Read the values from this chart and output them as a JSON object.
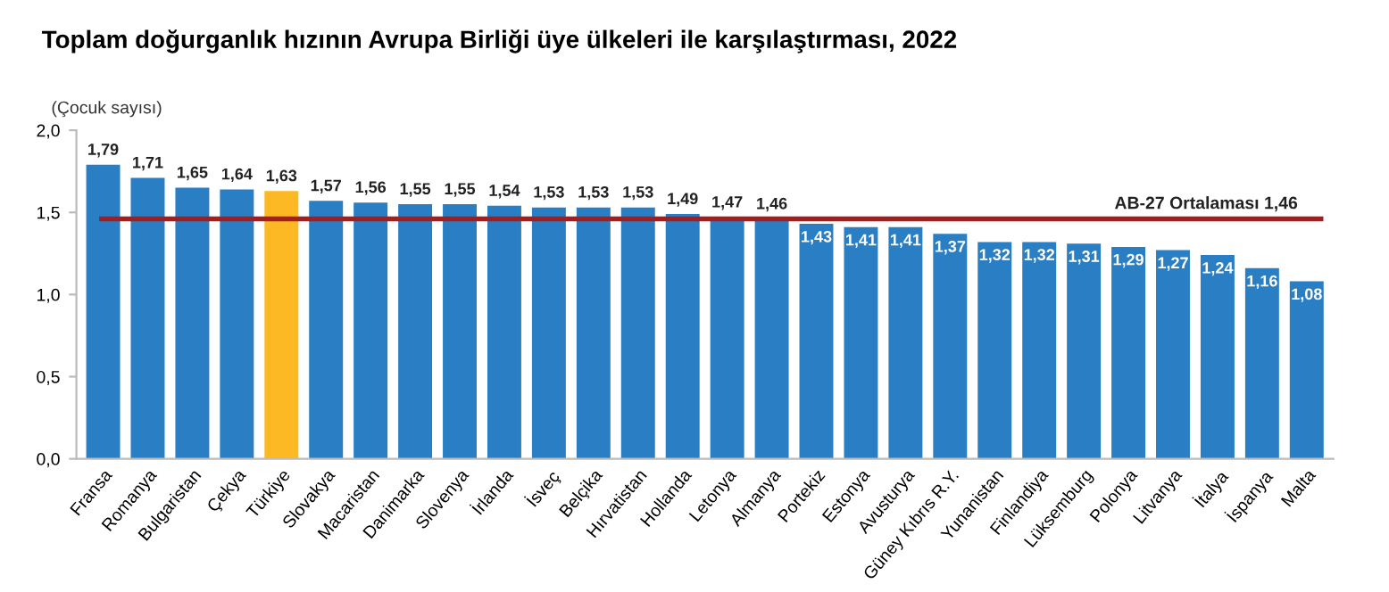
{
  "chart_data": {
    "type": "bar",
    "title": "Toplam doğurganlık hızının Avrupa Birliği üye ülkeleri ile karşılaştırması, 2022",
    "ylabel": "(Çocuk sayısı)",
    "categories": [
      "Fransa",
      "Romanya",
      "Bulgaristan",
      "Çekya",
      "Türkiye",
      "Slovakya",
      "Macaristan",
      "Danimarka",
      "Slovenya",
      "İrlanda",
      "İsveç",
      "Belçika",
      "Hırvatistan",
      "Hollanda",
      "Letonya",
      "Almanya",
      "Portekiz",
      "Estonya",
      "Avusturya",
      "Güney Kıbrıs R.Y.",
      "Yunanistan",
      "Finlandiya",
      "Lüksemburg",
      "Polonya",
      "Litvanya",
      "İtalya",
      "İspanya",
      "Malta"
    ],
    "values": [
      1.79,
      1.71,
      1.65,
      1.64,
      1.63,
      1.57,
      1.56,
      1.55,
      1.55,
      1.54,
      1.53,
      1.53,
      1.53,
      1.49,
      1.47,
      1.46,
      1.43,
      1.41,
      1.41,
      1.37,
      1.32,
      1.32,
      1.31,
      1.29,
      1.27,
      1.24,
      1.16,
      1.08
    ],
    "value_labels": [
      "1,79",
      "1,71",
      "1,65",
      "1,64",
      "1,63",
      "1,57",
      "1,56",
      "1,55",
      "1,55",
      "1,54",
      "1,53",
      "1,53",
      "1,53",
      "1,49",
      "1,47",
      "1,46",
      "1,43",
      "1,41",
      "1,41",
      "1,37",
      "1,32",
      "1,32",
      "1,31",
      "1,29",
      "1,27",
      "1,24",
      "1,16",
      "1,08"
    ],
    "colors": [
      "#2a7fc4",
      "#2a7fc4",
      "#2a7fc4",
      "#2a7fc4",
      "#fdb924",
      "#2a7fc4",
      "#2a7fc4",
      "#2a7fc4",
      "#2a7fc4",
      "#2a7fc4",
      "#2a7fc4",
      "#2a7fc4",
      "#2a7fc4",
      "#2a7fc4",
      "#2a7fc4",
      "#2a7fc4",
      "#2a7fc4",
      "#2a7fc4",
      "#2a7fc4",
      "#2a7fc4",
      "#2a7fc4",
      "#2a7fc4",
      "#2a7fc4",
      "#2a7fc4",
      "#2a7fc4",
      "#2a7fc4",
      "#2a7fc4",
      "#2a7fc4"
    ],
    "ylim": [
      0,
      2.0
    ],
    "yticks": [
      {
        "value": 0,
        "label": "0,0"
      },
      {
        "value": 0.5,
        "label": "0,5"
      },
      {
        "value": 1.0,
        "label": "1,0"
      },
      {
        "value": 1.5,
        "label": "1,5"
      },
      {
        "value": 2.0,
        "label": "2,0"
      }
    ],
    "ref_lines": [
      {
        "axis": "y",
        "value": 1.46,
        "label": "AB-27 Ortalaması 1,46",
        "color": "#a31f1f"
      }
    ],
    "grid": false,
    "legend": false
  }
}
